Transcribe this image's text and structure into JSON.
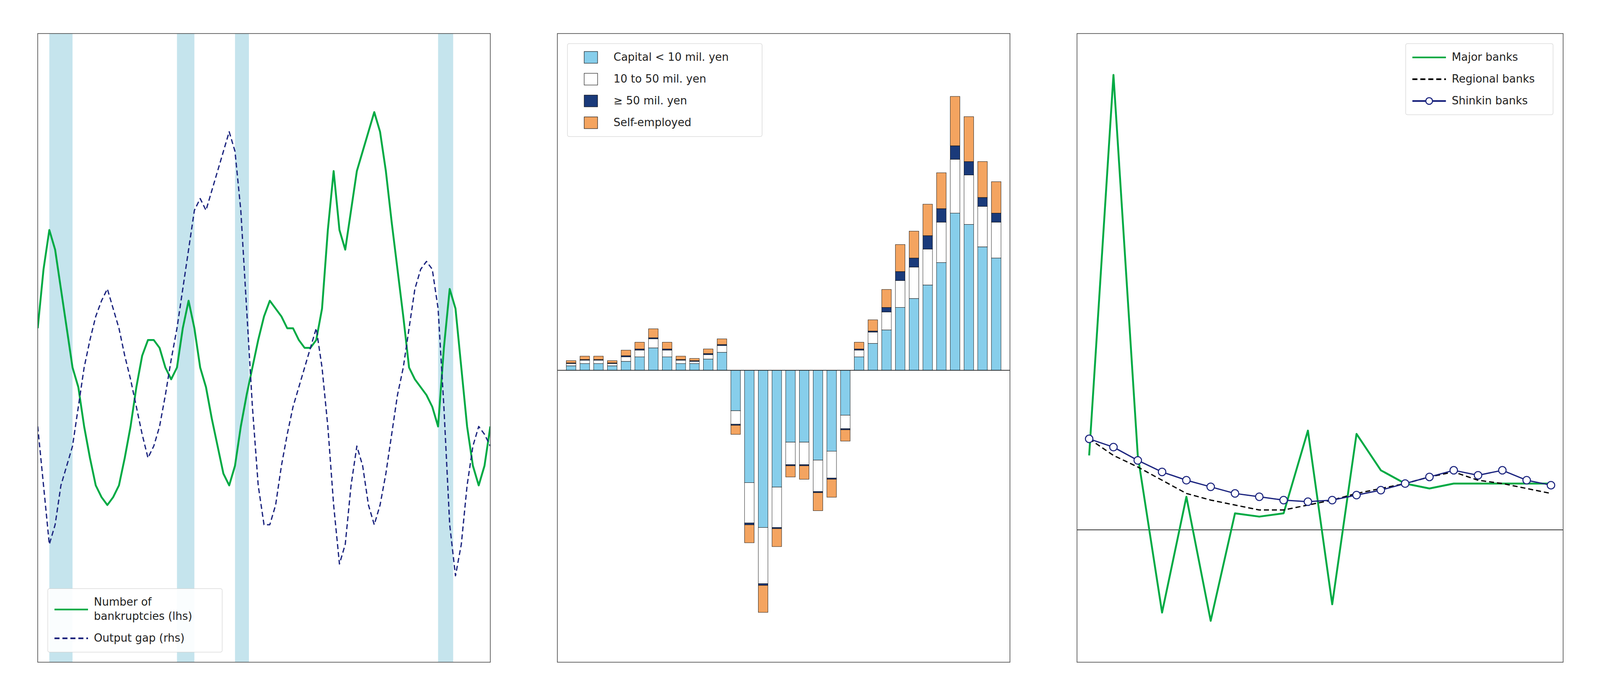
{
  "chart_data": [
    {
      "type": "line",
      "x": [
        1973,
        1973.5,
        1974,
        1974.5,
        1975,
        1975.5,
        1976,
        1976.5,
        1977,
        1977.5,
        1978,
        1978.5,
        1979,
        1979.5,
        1980,
        1980.5,
        1981,
        1981.5,
        1982,
        1982.5,
        1983,
        1983.5,
        1984,
        1984.5,
        1985,
        1985.5,
        1986,
        1986.5,
        1987,
        1987.5,
        1988,
        1988.5,
        1989,
        1989.5,
        1990,
        1990.5,
        1991,
        1991.5,
        1992,
        1992.5,
        1993,
        1993.5,
        1994,
        1994.5,
        1995,
        1995.5,
        1996,
        1996.5,
        1997,
        1997.5,
        1998,
        1998.5,
        1999,
        1999.5,
        2000,
        2000.5,
        2001,
        2001.5,
        2002,
        2002.5,
        2003,
        2003.5,
        2004,
        2004.5,
        2005,
        2005.5,
        2006,
        2006.5,
        2007,
        2007.5,
        2008,
        2008.5,
        2009,
        2009.5,
        2010,
        2010.5,
        2011,
        2011.5,
        2012
      ],
      "series": [
        {
          "name": "Number of\nbankruptcies (lhs)",
          "color": "#00AA44",
          "values": [
            14500,
            16000,
            17000,
            16500,
            15500,
            14500,
            13500,
            13000,
            12000,
            11200,
            10500,
            10200,
            10000,
            10200,
            10500,
            11200,
            12000,
            13000,
            13800,
            14200,
            14200,
            14000,
            13500,
            13200,
            13500,
            14500,
            15200,
            14500,
            13500,
            13000,
            12200,
            11500,
            10800,
            10500,
            11000,
            12000,
            12800,
            13500,
            14200,
            14800,
            15200,
            15000,
            14800,
            14500,
            14500,
            14200,
            14000,
            14000,
            14200,
            15000,
            17000,
            18500,
            17000,
            16500,
            17500,
            18500,
            19000,
            19500,
            20000,
            19500,
            18500,
            17200,
            16000,
            14800,
            13500,
            13200,
            13000,
            12800,
            12500,
            12000,
            14000,
            15500,
            15000,
            13500,
            12000,
            11000,
            10500,
            11000,
            12000
          ]
        },
        {
          "name": "Output gap (rhs)",
          "color": "#1a237e",
          "axis": "y2",
          "line_style": "dashed",
          "values": [
            -2.0,
            -3.5,
            -5.0,
            -4.5,
            -3.5,
            -3.0,
            -2.5,
            -1.5,
            -0.5,
            0.2,
            0.8,
            1.2,
            1.5,
            1.0,
            0.5,
            -0.2,
            -0.8,
            -1.5,
            -2.2,
            -2.8,
            -2.5,
            -2.0,
            -1.2,
            -0.3,
            0.5,
            1.5,
            2.5,
            3.5,
            3.8,
            3.5,
            4.0,
            4.5,
            5.0,
            5.5,
            5.0,
            3.5,
            1.0,
            -1.5,
            -3.5,
            -4.5,
            -4.5,
            -4.0,
            -3.0,
            -2.2,
            -1.5,
            -1.0,
            -0.5,
            0.0,
            0.5,
            -0.5,
            -2.0,
            -4.0,
            -5.5,
            -5.0,
            -3.5,
            -2.5,
            -3.0,
            -4.0,
            -4.5,
            -4.0,
            -3.2,
            -2.2,
            -1.2,
            -0.5,
            0.5,
            1.5,
            2.0,
            2.2,
            2.0,
            1.0,
            -1.5,
            -4.5,
            -5.8,
            -5.0,
            -3.5,
            -2.5,
            -2.0,
            -2.2,
            -2.5
          ]
        }
      ],
      "shaded_regions": {
        "color": "#ADD8E6",
        "ranges": [
          [
            1974,
            1976
          ],
          [
            1985,
            1986.5
          ],
          [
            1990,
            1991.2
          ],
          [
            2007.5,
            2008.8
          ]
        ]
      },
      "xlim": [
        1973,
        2012
      ],
      "ylim": [
        6000,
        22000
      ],
      "y2lim": [
        -8,
        8
      ],
      "tick_labels": false,
      "legend": "lower left"
    },
    {
      "type": "bar",
      "stacked": true,
      "categories": [
        null,
        null,
        null,
        null,
        null,
        null,
        null,
        null,
        null,
        null,
        null,
        null,
        null,
        null,
        null,
        null,
        null,
        null,
        null,
        null,
        null,
        null,
        null,
        null,
        null,
        null,
        null,
        null,
        null,
        null,
        null,
        null
      ],
      "series": [
        {
          "name": "Capital < 10 mil. yen",
          "color": "#87CEEB",
          "values": [
            0.02,
            0.03,
            0.03,
            0.02,
            0.04,
            0.06,
            0.1,
            0.06,
            0.03,
            0.03,
            0.05,
            0.08,
            -0.18,
            -0.5,
            -0.7,
            -0.52,
            -0.32,
            -0.32,
            -0.4,
            -0.36,
            -0.2,
            0.06,
            0.12,
            0.18,
            0.28,
            0.32,
            0.38,
            0.48,
            0.7,
            0.65,
            0.55,
            0.5
          ]
        },
        {
          "name": "10 to 50 mil. yen",
          "color": "#FFFFFF",
          "values": [
            0.01,
            0.015,
            0.015,
            0.01,
            0.02,
            0.03,
            0.04,
            0.03,
            0.015,
            0.01,
            0.02,
            0.03,
            -0.06,
            -0.18,
            -0.25,
            -0.18,
            -0.1,
            -0.1,
            -0.14,
            -0.12,
            -0.06,
            0.03,
            0.05,
            0.08,
            0.12,
            0.14,
            0.16,
            0.18,
            0.24,
            0.22,
            0.18,
            0.16
          ]
        },
        {
          "name": "≥ 50 mil. yen",
          "color": "#1a3a7a",
          "values": [
            0.003,
            0.003,
            0.003,
            0.003,
            0.005,
            0.005,
            0.005,
            0.005,
            0.003,
            0.003,
            0.005,
            0.005,
            -0.005,
            -0.008,
            -0.008,
            -0.005,
            -0.005,
            -0.005,
            -0.005,
            -0.005,
            -0.005,
            0.005,
            0.005,
            0.02,
            0.04,
            0.04,
            0.06,
            0.06,
            0.06,
            0.06,
            0.04,
            0.04
          ]
        },
        {
          "name": "Self-employed",
          "color": "#F4A460",
          "values": [
            0.01,
            0.015,
            0.015,
            0.01,
            0.025,
            0.03,
            0.04,
            0.03,
            0.015,
            0.01,
            0.02,
            0.025,
            -0.04,
            -0.08,
            -0.12,
            -0.08,
            -0.05,
            -0.06,
            -0.08,
            -0.08,
            -0.05,
            0.03,
            0.05,
            0.08,
            0.12,
            0.12,
            0.14,
            0.16,
            0.22,
            0.2,
            0.16,
            0.14
          ]
        }
      ],
      "ylim": [
        -1.3,
        1.5
      ],
      "tick_labels": false,
      "legend": "upper left"
    },
    {
      "type": "line",
      "x": [
        1993,
        1994,
        1995,
        1996,
        1997,
        1998,
        1999,
        2000,
        2001,
        2002,
        2003,
        2004,
        2005,
        2006,
        2007,
        2008,
        2009,
        2010,
        2011,
        2012
      ],
      "series": [
        {
          "name": "Major banks",
          "color": "#00AA44",
          "values": [
            0.45,
            2.75,
            0.45,
            -0.5,
            0.2,
            -0.55,
            0.1,
            0.08,
            0.1,
            0.6,
            -0.45,
            0.58,
            0.36,
            0.28,
            0.25,
            0.28,
            0.28,
            0.28,
            0.28,
            0.28
          ]
        },
        {
          "name": "Regional banks",
          "color": "#000000",
          "line_style": "dashed",
          "values": [
            0.55,
            0.45,
            0.38,
            0.3,
            0.22,
            0.18,
            0.15,
            0.12,
            0.12,
            0.15,
            0.18,
            0.22,
            0.25,
            0.28,
            0.32,
            0.35,
            0.3,
            0.28,
            0.25,
            0.22
          ]
        },
        {
          "name": "Shinkin banks",
          "color": "#1a237e",
          "marker": "circle",
          "values": [
            0.55,
            0.5,
            0.42,
            0.35,
            0.3,
            0.26,
            0.22,
            0.2,
            0.18,
            0.17,
            0.18,
            0.21,
            0.24,
            0.28,
            0.32,
            0.36,
            0.33,
            0.36,
            0.3,
            0.27
          ]
        }
      ],
      "xlim": [
        1992.5,
        2012.5
      ],
      "ylim": [
        -0.8,
        3.0
      ],
      "tick_labels": false,
      "legend": "upper right"
    }
  ]
}
